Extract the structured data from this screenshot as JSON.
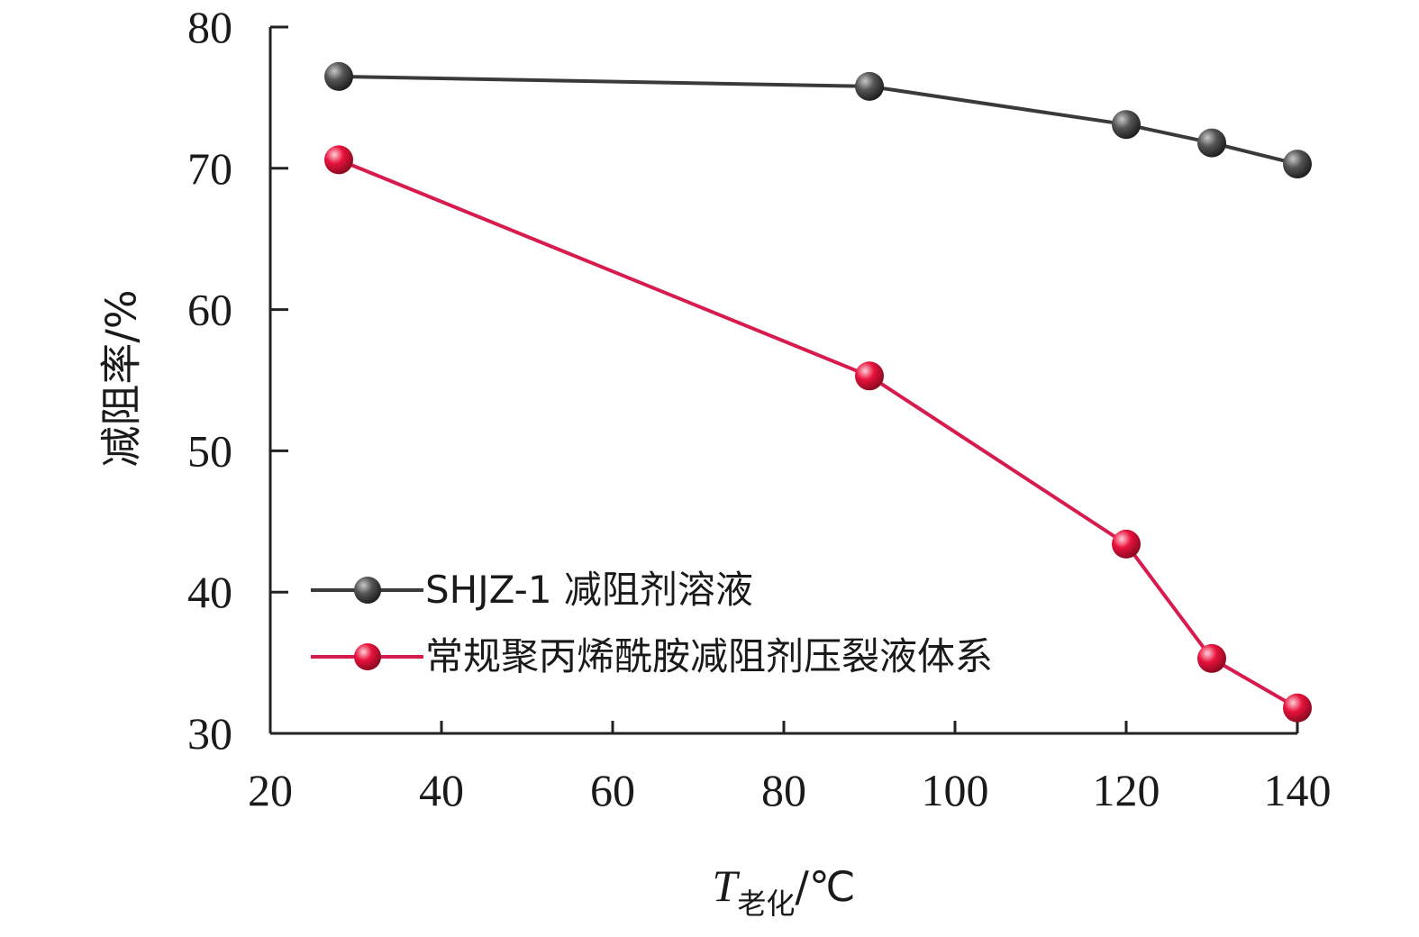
{
  "chart_data": {
    "type": "line",
    "title": "",
    "xlabel": "T",
    "xlabel_subscript": "老化",
    "xlabel_unit": "/℃",
    "ylabel": "减阻率/%",
    "xlim": [
      20,
      140
    ],
    "ylim": [
      30,
      80
    ],
    "xticks": [
      20,
      40,
      60,
      80,
      100,
      120,
      140
    ],
    "yticks": [
      30,
      40,
      50,
      60,
      70,
      80
    ],
    "grid": false,
    "legend_position": "lower-left",
    "x": [
      28,
      90,
      120,
      130,
      140
    ],
    "series": [
      {
        "name": "SHJZ-1 减阻剂溶液",
        "color": "#3a3a3a",
        "marker_color": "#4a4a4a",
        "values": [
          76.5,
          75.8,
          73.1,
          71.8,
          70.3
        ]
      },
      {
        "name": "常规聚丙烯酰胺减阻剂压裂液体系",
        "color": "#d81b4e",
        "marker_color": "#e0103a",
        "values": [
          70.6,
          55.3,
          43.4,
          35.3,
          31.8
        ]
      }
    ]
  }
}
